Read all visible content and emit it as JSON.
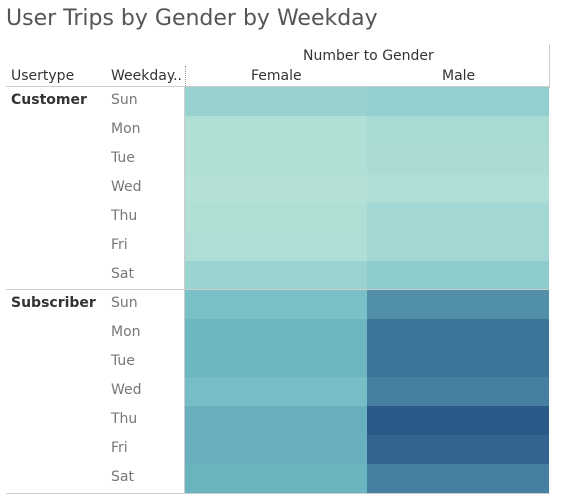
{
  "title": "User Trips by Gender by Weekday",
  "headers": {
    "usertype": "Usertype",
    "weekday": "Weekday..",
    "measure_group": "Number to Gender"
  },
  "chart_data": {
    "type": "heatmap",
    "title": "User Trips by Gender by Weekday",
    "columns_title": "Number to Gender",
    "columns": [
      "Female",
      "Male"
    ],
    "row_dimensions": [
      "Usertype",
      "Weekday.."
    ],
    "color_scale": {
      "low": "#b9e4d9",
      "high": "#2b5a89"
    },
    "groups": [
      {
        "usertype": "Customer",
        "rows": [
          {
            "weekday": "Sun",
            "values": [
              0.18,
              0.2
            ]
          },
          {
            "weekday": "Mon",
            "values": [
              0.05,
              0.09
            ]
          },
          {
            "weekday": "Tue",
            "values": [
              0.05,
              0.08
            ]
          },
          {
            "weekday": "Wed",
            "values": [
              0.03,
              0.06
            ]
          },
          {
            "weekday": "Thu",
            "values": [
              0.05,
              0.12
            ]
          },
          {
            "weekday": "Fri",
            "values": [
              0.06,
              0.12
            ]
          },
          {
            "weekday": "Sat",
            "values": [
              0.16,
              0.24
            ]
          }
        ]
      },
      {
        "usertype": "Subscriber",
        "rows": [
          {
            "weekday": "Sun",
            "values": [
              0.34,
              0.66
            ]
          },
          {
            "weekday": "Mon",
            "values": [
              0.42,
              0.84
            ]
          },
          {
            "weekday": "Tue",
            "values": [
              0.42,
              0.84
            ]
          },
          {
            "weekday": "Wed",
            "values": [
              0.36,
              0.76
            ]
          },
          {
            "weekday": "Thu",
            "values": [
              0.46,
              1.0
            ]
          },
          {
            "weekday": "Fri",
            "values": [
              0.46,
              0.94
            ]
          },
          {
            "weekday": "Sat",
            "values": [
              0.44,
              0.76
            ]
          }
        ]
      }
    ]
  }
}
